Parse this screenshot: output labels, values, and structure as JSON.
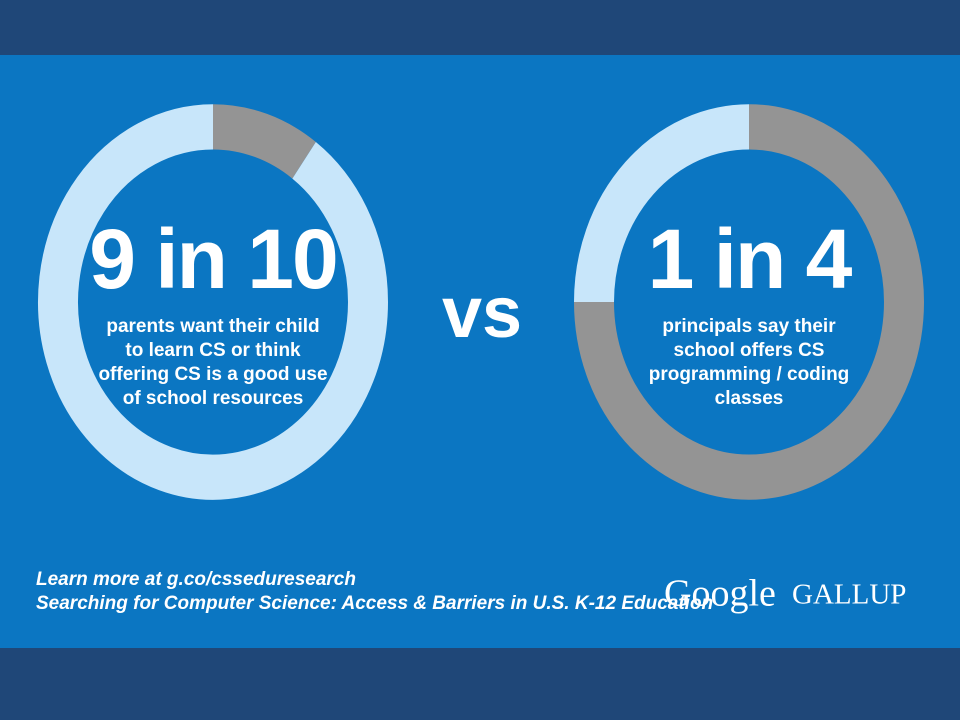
{
  "chart_data": [
    {
      "type": "donut",
      "values": [
        10,
        90
      ],
      "colors": [
        "#949494",
        "#c8e6fa"
      ],
      "headline": "9 in 10",
      "text": [
        "parents want their child",
        "to learn CS or think",
        "offering CS is a good use",
        "of school resources"
      ]
    },
    {
      "type": "donut",
      "values": [
        75,
        25
      ],
      "colors": [
        "#949494",
        "#c8e6fa"
      ],
      "headline": "1 in 4",
      "text": [
        "principals say their",
        "school offers CS",
        "programming / coding",
        "classes"
      ]
    }
  ],
  "vs": "vs",
  "footer": [
    "Learn more at g.co/csseduresearch",
    "Searching for Computer Science: Access & Barriers in U.S. K-12 Education"
  ],
  "logos": [
    "Google",
    "GALLUP"
  ]
}
